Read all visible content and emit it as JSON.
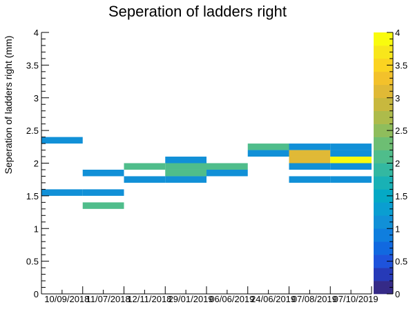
{
  "chart_data": {
    "type": "heatmap",
    "title": "Seperation of ladders right",
    "xlabel": "",
    "ylabel": "Seperation of ladders right (mm)",
    "ylim": [
      0,
      4
    ],
    "y_ticks": [
      "0",
      "0.5",
      "1",
      "1.5",
      "2",
      "2.5",
      "3",
      "3.5",
      "4"
    ],
    "x_tick_labels": [
      "10/09/2018",
      "11/07/2018",
      "12/11/2018",
      "29/01/2019",
      "06/06/2019",
      "24/06/2019",
      "07/08/2019",
      "07/10/2019"
    ],
    "z_range": [
      0,
      4
    ],
    "z_ticks": [
      "0",
      "0.5",
      "1",
      "1.5",
      "2",
      "2.5",
      "3",
      "3.5",
      "4"
    ],
    "grid": false,
    "bins_x": 8,
    "bin_height": 0.1,
    "cells": [
      {
        "x": 0,
        "y": 2.3,
        "z": 1
      },
      {
        "x": 0,
        "y": 1.5,
        "z": 1
      },
      {
        "x": 1,
        "y": 1.5,
        "z": 1
      },
      {
        "x": 1,
        "y": 1.8,
        "z": 1
      },
      {
        "x": 1,
        "y": 1.3,
        "z": 2
      },
      {
        "x": 2,
        "y": 1.9,
        "z": 2
      },
      {
        "x": 2,
        "y": 1.7,
        "z": 1
      },
      {
        "x": 3,
        "y": 2.0,
        "z": 1
      },
      {
        "x": 3,
        "y": 1.9,
        "z": 2
      },
      {
        "x": 3,
        "y": 1.8,
        "z": 2
      },
      {
        "x": 3,
        "y": 1.7,
        "z": 1
      },
      {
        "x": 4,
        "y": 1.9,
        "z": 2
      },
      {
        "x": 4,
        "y": 1.8,
        "z": 1
      },
      {
        "x": 5,
        "y": 2.2,
        "z": 2
      },
      {
        "x": 5,
        "y": 2.1,
        "z": 1
      },
      {
        "x": 6,
        "y": 2.2,
        "z": 1
      },
      {
        "x": 6,
        "y": 2.1,
        "z": 3
      },
      {
        "x": 6,
        "y": 2.0,
        "z": 3
      },
      {
        "x": 6,
        "y": 1.9,
        "z": 1
      },
      {
        "x": 6,
        "y": 1.7,
        "z": 1
      },
      {
        "x": 7,
        "y": 2.2,
        "z": 1
      },
      {
        "x": 7,
        "y": 2.1,
        "z": 1
      },
      {
        "x": 7,
        "y": 2.0,
        "z": 4
      },
      {
        "x": 7,
        "y": 1.9,
        "z": 1
      },
      {
        "x": 7,
        "y": 1.7,
        "z": 1
      }
    ],
    "palette": [
      "#352a87",
      "#263ab8",
      "#1e53dc",
      "#1169e0",
      "#0f7ede",
      "#1190d7",
      "#0a9ed1",
      "#05a9c5",
      "#19b1b5",
      "#33b8a1",
      "#4fbd8b",
      "#6dbe73",
      "#8fbd5c",
      "#adbb4b",
      "#c8b83e",
      "#e0b936",
      "#f3c12b",
      "#fbd321",
      "#f8e61b",
      "#f9fb0e"
    ]
  }
}
